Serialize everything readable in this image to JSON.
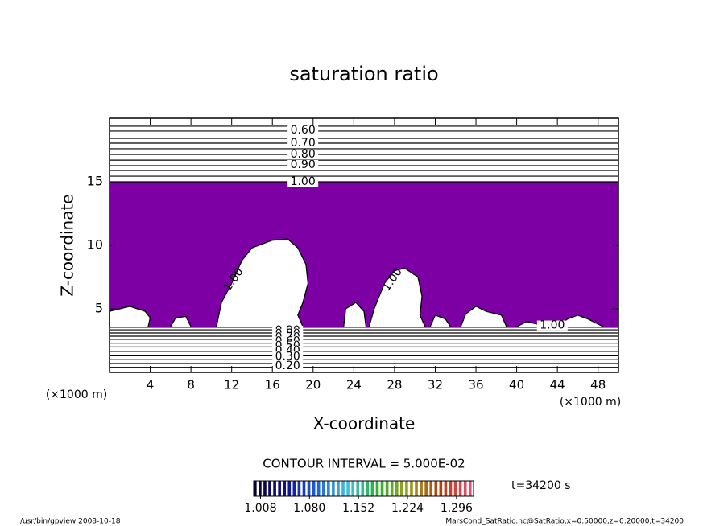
{
  "chart_data": {
    "type": "contour",
    "title": "saturation ratio",
    "xlabel": "X-coordinate",
    "ylabel": "Z-coordinate",
    "x_unit": "(×1000 m)",
    "y_unit": "(×1000 m)",
    "xlim": [
      0,
      50
    ],
    "ylim": [
      0,
      20
    ],
    "xticks": [
      4,
      8,
      12,
      16,
      20,
      24,
      28,
      32,
      36,
      40,
      44,
      48
    ],
    "yticks": [
      5,
      10,
      15
    ],
    "fill_color": "#7d00a4",
    "fill_zlim": [
      3.6,
      15
    ],
    "upper_lines_z": [
      19.37,
      18.99,
      18.42,
      18.04,
      17.6,
      17.15,
      16.7,
      16.27,
      15.89,
      15.44,
      15.0
    ],
    "lower_lines_z": [
      3.55,
      3.35,
      3.1,
      2.85,
      2.6,
      2.3,
      2.0,
      1.65,
      1.3,
      1.0,
      0.7,
      0.4
    ],
    "clouds": [
      {
        "x": [
          0,
          0,
          1,
          2,
          3.5,
          4,
          3.8
        ],
        "z": [
          3.6,
          4.8,
          5,
          5.2,
          4.8,
          4.3,
          3.6
        ]
      },
      {
        "x": [
          6,
          6.5,
          7.5,
          8
        ],
        "z": [
          3.6,
          4.3,
          4.4,
          3.6
        ]
      },
      {
        "x": [
          10.5,
          11,
          12,
          13,
          14,
          16,
          17.5,
          18.5,
          19.3,
          19.5,
          19,
          18.5,
          19
        ],
        "z": [
          3.6,
          5.5,
          7,
          8.8,
          9.8,
          10.4,
          10.5,
          9.8,
          8.5,
          7,
          5.5,
          4.5,
          3.6
        ]
      },
      {
        "x": [
          23,
          23.2,
          24.2,
          25,
          25.2
        ],
        "z": [
          3.6,
          5,
          5.5,
          4.8,
          3.6
        ]
      },
      {
        "x": [
          25.5,
          26,
          27,
          28,
          29,
          30.3,
          30.7,
          30.5,
          31
        ],
        "z": [
          3.6,
          5,
          7,
          8,
          8.2,
          7.5,
          6,
          4.5,
          3.6
        ]
      },
      {
        "x": [
          31.5,
          32,
          33,
          33.5
        ],
        "z": [
          3.6,
          4.5,
          4.2,
          3.6
        ]
      },
      {
        "x": [
          34.5,
          35,
          36,
          37,
          38.5,
          39
        ],
        "z": [
          3.6,
          4.6,
          5.2,
          4.8,
          4.5,
          3.6
        ]
      },
      {
        "x": [
          40,
          41,
          42,
          42.5
        ],
        "z": [
          3.6,
          4,
          3.8,
          3.6
        ]
      },
      {
        "x": [
          44,
          45,
          46,
          47,
          48,
          48.5
        ],
        "z": [
          3.6,
          4.2,
          4.5,
          4.2,
          3.8,
          3.6
        ]
      }
    ],
    "contour_labels": [
      {
        "level": 0.6,
        "label": "0.60",
        "x": 19,
        "z": 19.05
      },
      {
        "level": 0.7,
        "label": "0.70",
        "x": 19,
        "z": 18.04
      },
      {
        "level": 0.8,
        "label": "0.80",
        "x": 19,
        "z": 17.15
      },
      {
        "level": 0.9,
        "label": "0.90",
        "x": 19,
        "z": 16.33
      },
      {
        "level": 1,
        "label": "1.00",
        "x": 19,
        "z": 15.0
      },
      {
        "level": 1,
        "label": "1.00",
        "x": 43.5,
        "z": 3.7
      },
      {
        "level": 0.9,
        "label": "0.90",
        "x": 17.5,
        "z": 3.3
      },
      {
        "level": 0.8,
        "label": "0.80",
        "x": 17.5,
        "z": 3.05
      },
      {
        "level": 0.7,
        "label": "0.70",
        "x": 17.5,
        "z": 2.75
      },
      {
        "level": 0.6,
        "label": "0.60",
        "x": 17.5,
        "z": 2.45
      },
      {
        "level": 0.5,
        "label": "0.50",
        "x": 17.5,
        "z": 2.1
      },
      {
        "level": 0.4,
        "label": "0.40",
        "x": 17.5,
        "z": 1.7
      },
      {
        "level": 0.3,
        "label": "0.30",
        "x": 17.5,
        "z": 1.25
      },
      {
        "level": 0.2,
        "label": "0.20",
        "x": 17.5,
        "z": 0.5
      }
    ],
    "cloud_labels": [
      {
        "level": 1,
        "label": "1.00",
        "x": 12.2,
        "z": 7.3
      },
      {
        "level": 1,
        "label": "1.00",
        "x": 27.8,
        "z": 7.3
      }
    ],
    "contour_interval": "CONTOUR INTERVAL = 5.000E-02",
    "colorbar_lim": [
      0.998,
      1.321
    ],
    "colorbar_colors": [
      "#0a0030",
      "#10108a",
      "#1e60d0",
      "#40c0e0",
      "#30b030",
      "#a0a020",
      "#b04010",
      "#e05070"
    ],
    "colorbar_ticks": [
      {
        "value": 1.008,
        "label": "1.008"
      },
      {
        "value": 1.08,
        "label": "1.080"
      },
      {
        "value": 1.152,
        "label": "1.152"
      },
      {
        "value": 1.224,
        "label": "1.224"
      },
      {
        "value": 1.296,
        "label": "1.296"
      }
    ],
    "time_label": "t=34200 s",
    "footer_left": "/usr/bin/gpview  2008-10-18",
    "footer_right": "MarsCond_SatRatio.nc@SatRatio,x=0:50000,z=0:20000,t=34200"
  }
}
